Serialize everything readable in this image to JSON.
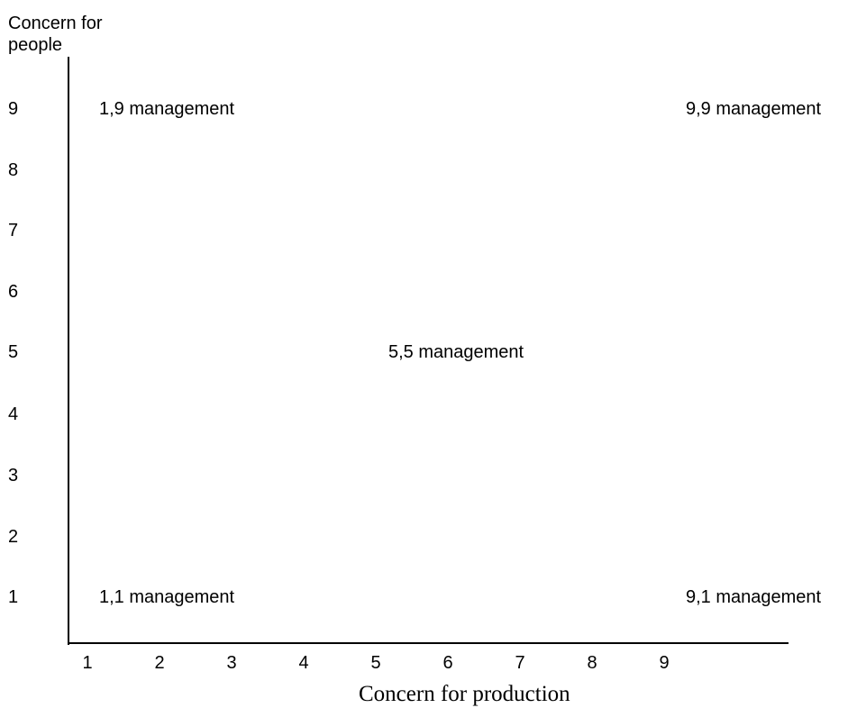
{
  "y_axis": {
    "title_lines": [
      "Concern for",
      "people"
    ],
    "ticks": [
      "9",
      "8",
      "7",
      "6",
      "5",
      "4",
      "3",
      "2",
      "1"
    ]
  },
  "x_axis": {
    "title": "Concern for production",
    "ticks": [
      "1",
      "2",
      "3",
      "4",
      "5",
      "6",
      "7",
      "8",
      "9"
    ]
  },
  "grid_labels": {
    "top_left": "1,9 management",
    "top_right": "9,9 management",
    "middle": "5,5 management",
    "bottom_left": "1,1 management",
    "bottom_right": "9,1 management"
  }
}
